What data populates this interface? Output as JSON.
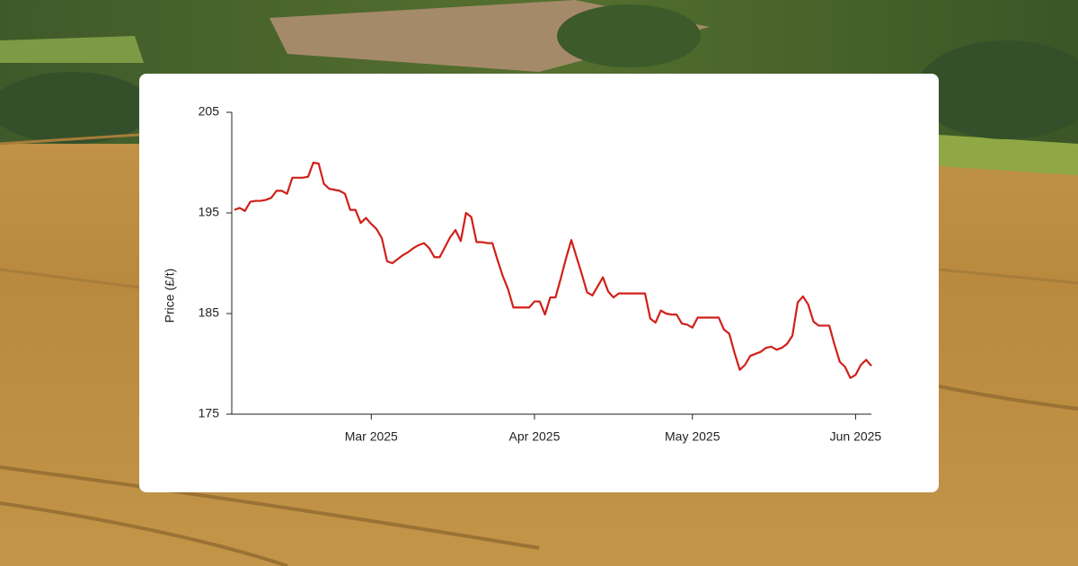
{
  "chart_data": {
    "type": "line",
    "y_label": "Price (£/t)",
    "color": "#d0201a",
    "values": [
      195.3,
      195.5,
      195.2,
      196.1,
      196.2,
      196.2,
      196.3,
      196.5,
      197.2,
      197.2,
      196.9,
      198.5,
      198.5,
      198.5,
      198.6,
      200.0,
      199.9,
      197.9,
      197.4,
      197.3,
      197.2,
      196.9,
      195.3,
      195.3,
      194.0,
      194.5,
      193.9,
      193.4,
      192.5,
      190.2,
      190.0,
      190.4,
      190.8,
      191.1,
      191.5,
      191.8,
      192.0,
      191.5,
      190.6,
      190.6,
      191.6,
      192.6,
      193.3,
      192.2,
      195.0,
      194.6,
      192.1,
      192.1,
      192.0,
      192.0,
      190.3,
      188.7,
      187.4,
      185.6,
      185.6,
      185.6,
      185.6,
      186.2,
      186.2,
      184.9,
      186.6,
      186.6,
      188.5,
      190.5,
      192.3,
      190.6,
      188.9,
      187.1,
      186.8,
      187.7,
      188.6,
      187.2,
      186.6,
      187.0,
      187.0,
      187.0,
      187.0,
      187.0,
      187.0,
      184.5,
      184.1,
      185.3,
      185.0,
      184.9,
      184.9,
      184.0,
      183.9,
      183.6,
      184.6,
      184.6,
      184.6,
      184.6,
      184.6,
      183.4,
      183.0,
      181.1,
      179.4,
      179.9,
      180.8,
      181.0,
      181.2,
      181.6,
      181.7,
      181.4,
      181.6,
      182.0,
      182.8,
      186.1,
      186.7,
      185.9,
      184.2,
      183.8,
      183.8,
      183.8,
      181.9,
      180.2,
      179.7,
      178.6,
      178.9,
      179.9,
      180.4,
      179.8
    ],
    "xlim": [
      -0.5,
      121
    ],
    "xticks": [
      {
        "value": 26,
        "label": "Mar 2025"
      },
      {
        "value": 57,
        "label": "Apr 2025"
      },
      {
        "value": 87,
        "label": "May 2025"
      },
      {
        "value": 118,
        "label": "Jun 2025"
      }
    ],
    "ylim": [
      175,
      205
    ],
    "yticks": [
      175,
      185,
      195,
      205
    ]
  }
}
